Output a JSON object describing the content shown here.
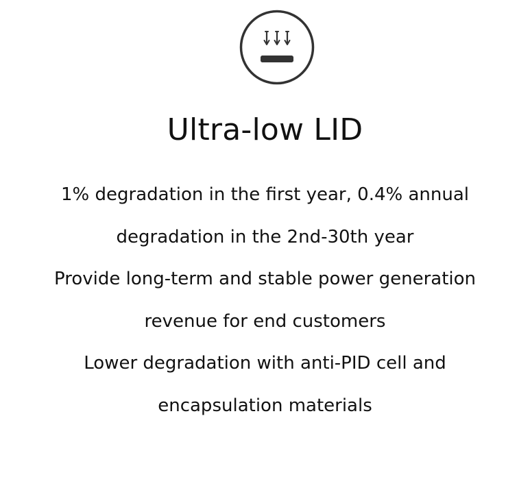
{
  "feature": {
    "icon": "light-pressure-arrows-panel-icon",
    "title": "Ultra-low LID",
    "lines": [
      "1% degradation in the first year, 0.4% annual",
      "degradation in the 2nd-30th year",
      "Provide long-term and stable power generation",
      "revenue for end customers",
      "Lower degradation with anti-PID cell and",
      "encapsulation materials"
    ]
  },
  "colors": {
    "text": "#111111",
    "icon": "#333333",
    "background": "#ffffff"
  }
}
